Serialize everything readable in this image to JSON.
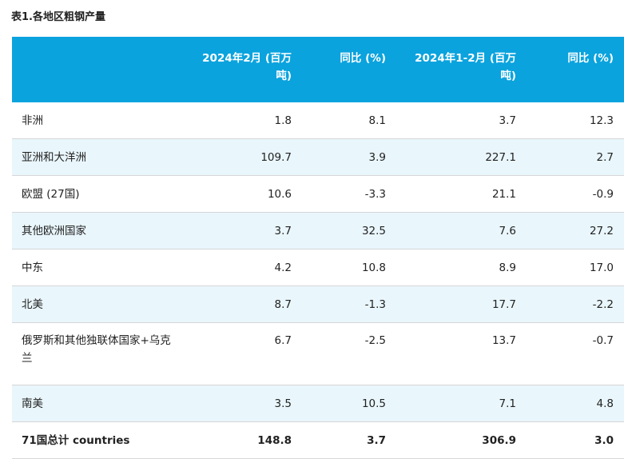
{
  "caption": "表1.各地区粗钢产量",
  "table": {
    "headers": [
      "",
      "2024年2月 (百万吨)",
      "同比 (%)",
      "2024年1-2月 (百万吨)",
      "同比 (%)"
    ],
    "rows": [
      [
        "非洲",
        "1.8",
        "8.1",
        "3.7",
        "12.3"
      ],
      [
        "亚洲和大洋洲",
        "109.7",
        "3.9",
        "227.1",
        "2.7"
      ],
      [
        "欧盟 (27国)",
        "10.6",
        "-3.3",
        "21.1",
        "-0.9"
      ],
      [
        "其他欧洲国家",
        "3.7",
        "32.5",
        "7.6",
        "27.2"
      ],
      [
        "中东",
        "4.2",
        "10.8",
        "8.9",
        "17.0"
      ],
      [
        "北美",
        "8.7",
        "-1.3",
        "17.7",
        "-2.2"
      ],
      [
        "俄罗斯和其他独联体国家+乌克兰",
        "6.7",
        "-2.5",
        "13.7",
        "-0.7"
      ],
      [
        "南美",
        "3.5",
        "10.5",
        "7.1",
        "4.8"
      ],
      [
        "71国总计 countries",
        "148.8",
        "3.7",
        "306.9",
        "3.0"
      ]
    ]
  }
}
